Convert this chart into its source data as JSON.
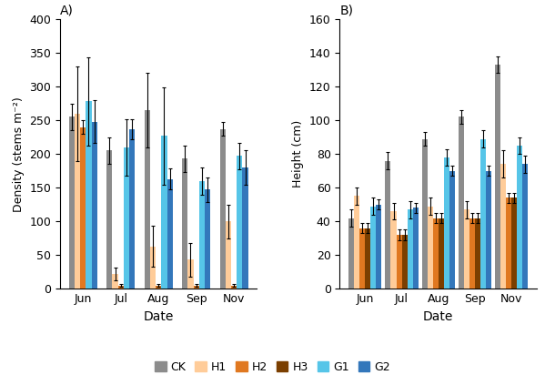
{
  "dates": [
    "Jun",
    "Jul",
    "Aug",
    "Sep",
    "Nov"
  ],
  "panel_A": {
    "title": "A)",
    "ylabel": "Density (stems m⁻²)",
    "xlabel": "Date",
    "ylim": [
      0,
      400
    ],
    "yticks": [
      0,
      50,
      100,
      150,
      200,
      250,
      300,
      350,
      400
    ],
    "series": {
      "CK": {
        "values": [
          255,
          205,
          265,
          193,
          237
        ],
        "errors": [
          20,
          20,
          55,
          20,
          10
        ],
        "color": "#8C8C8C"
      },
      "H1": {
        "values": [
          260,
          22,
          63,
          43,
          100
        ],
        "errors": [
          70,
          10,
          30,
          25,
          25
        ],
        "color": "#FFCC99"
      },
      "H2": {
        "values": [
          240,
          5,
          5,
          5,
          5
        ],
        "errors": [
          10,
          2,
          2,
          2,
          2
        ],
        "color": "#E07820"
      },
      "G1": {
        "values": [
          278,
          210,
          227,
          160,
          197
        ],
        "errors": [
          65,
          42,
          72,
          20,
          20
        ],
        "color": "#56C5E8"
      },
      "G2": {
        "values": [
          248,
          237,
          163,
          147,
          180
        ],
        "errors": [
          32,
          15,
          15,
          18,
          25
        ],
        "color": "#3377BB"
      }
    },
    "series_order": [
      "CK",
      "H1",
      "H2",
      "G1",
      "G2"
    ]
  },
  "panel_B": {
    "title": "B)",
    "ylabel": "Height (cm)",
    "xlabel": "Date",
    "ylim": [
      0,
      160
    ],
    "yticks": [
      0,
      20,
      40,
      60,
      80,
      100,
      120,
      140,
      160
    ],
    "series": {
      "CK": {
        "values": [
          42,
          76,
          89,
          102,
          133
        ],
        "errors": [
          5,
          5,
          4,
          4,
          5
        ],
        "color": "#8C8C8C"
      },
      "H1": {
        "values": [
          55,
          46,
          49,
          47,
          74
        ],
        "errors": [
          5,
          5,
          5,
          5,
          8
        ],
        "color": "#FFCC99"
      },
      "H2": {
        "values": [
          36,
          32,
          42,
          42,
          54
        ],
        "errors": [
          3,
          3,
          3,
          3,
          3
        ],
        "color": "#E07820"
      },
      "H3": {
        "values": [
          36,
          32,
          42,
          42,
          54
        ],
        "errors": [
          3,
          3,
          3,
          3,
          3
        ],
        "color": "#7B3F00"
      },
      "G1": {
        "values": [
          49,
          47,
          78,
          89,
          85
        ],
        "errors": [
          5,
          5,
          5,
          5,
          5
        ],
        "color": "#56C5E8"
      },
      "G2": {
        "values": [
          50,
          48,
          70,
          70,
          74
        ],
        "errors": [
          3,
          3,
          3,
          3,
          5
        ],
        "color": "#3377BB"
      }
    },
    "series_order": [
      "CK",
      "H1",
      "H2",
      "H3",
      "G1",
      "G2"
    ]
  },
  "legend": {
    "CK": {
      "color": "#8C8C8C",
      "label": "CK"
    },
    "H1": {
      "color": "#FFCC99",
      "label": "H1"
    },
    "H2": {
      "color": "#E07820",
      "label": "H2"
    },
    "H3": {
      "color": "#7B3F00",
      "label": "H3"
    },
    "G1": {
      "color": "#56C5E8",
      "label": "G1"
    },
    "G2": {
      "color": "#3377BB",
      "label": "G2"
    }
  },
  "bar_width": 0.15,
  "fontsize": 9
}
